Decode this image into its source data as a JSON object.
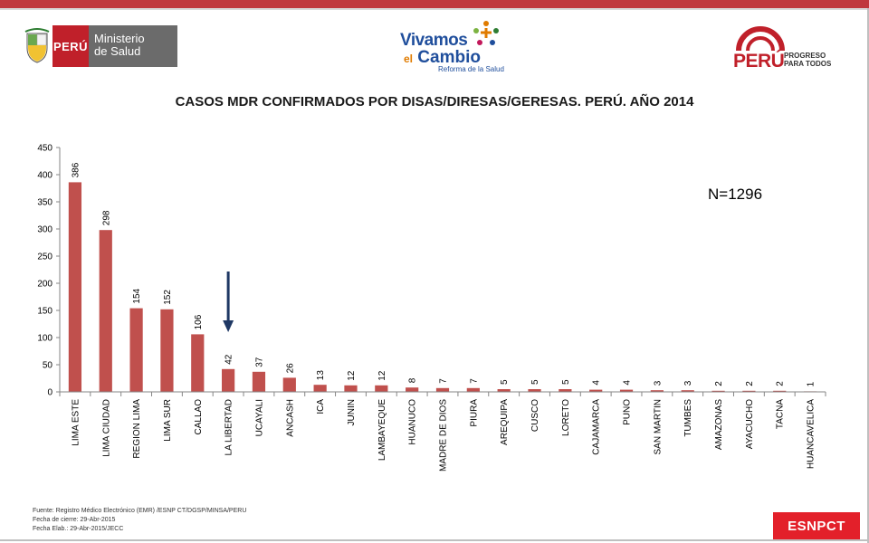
{
  "header": {
    "minsa": {
      "country": "PERÚ",
      "line1": "Ministerio",
      "line2": "de Salud"
    },
    "vivamos": {
      "line1": "Vivamos",
      "el": "el",
      "cambio": "Cambio",
      "sub": "Reforma de la Salud"
    },
    "peru": {
      "word": "PERÚ",
      "tag1": "PROGRESO",
      "tag2": "PARA TODOS"
    }
  },
  "title": "CASOS MDR CONFIRMADOS POR DISAS/DIRESAS/GERESAS. PERÚ. AÑO 2014",
  "n_label": "N=1296",
  "chart_data": {
    "type": "bar",
    "title": "CASOS MDR CONFIRMADOS POR DISAS/DIRESAS/GERESAS. PERÚ. AÑO 2014",
    "xlabel": "",
    "ylabel": "",
    "ylim": [
      0,
      450
    ],
    "yticks": [
      0,
      50,
      100,
      150,
      200,
      250,
      300,
      350,
      400,
      450
    ],
    "categories": [
      "LIMA ESTE",
      "LIMA CIUDAD",
      "REGION LIMA",
      "LIMA SUR",
      "CALLAO",
      "LA LIBERTAD",
      "UCAYALI",
      "ANCASH",
      "ICA",
      "JUNIN",
      "LAMBAYEQUE",
      "HUANUCO",
      "MADRE DE DIOS",
      "PIURA",
      "AREQUIPA",
      "CUSCO",
      "LORETO",
      "CAJAMARCA",
      "PUNO",
      "SAN MARTIN",
      "TUMBES",
      "AMAZONAS",
      "AYACUCHO",
      "TACNA",
      "HUANCAVELICA"
    ],
    "values": [
      386,
      298,
      154,
      152,
      106,
      42,
      37,
      26,
      13,
      12,
      12,
      8,
      7,
      7,
      5,
      5,
      5,
      4,
      4,
      3,
      3,
      2,
      2,
      2,
      1
    ],
    "bar_color": "#c0504d",
    "arrow_color": "#1f3864",
    "arrow_category": "LA LIBERTAD",
    "grid": false
  },
  "footer": {
    "source": "Fuente: Registro Médico Electrónico (EMR) /ESNP CT/DGSP/MINSA/PERU",
    "closing": "Fecha de cierre: 29-Abr-2015",
    "elab": "Fecha Elab.: 29-Abr-2015/JECC",
    "badge": "ESNPCT"
  }
}
